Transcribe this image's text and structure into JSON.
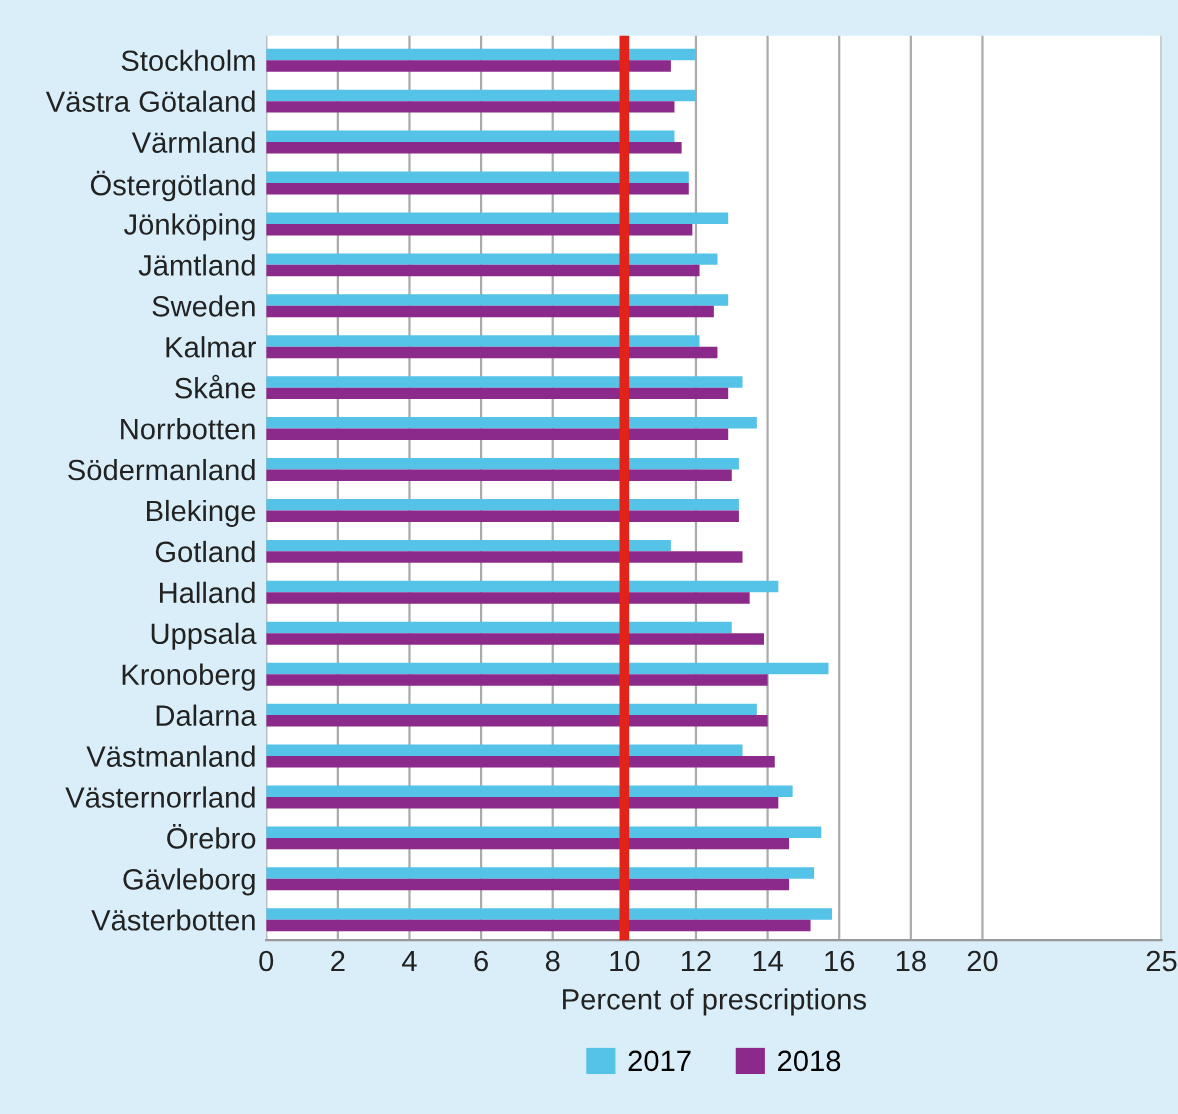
{
  "chart_data": {
    "type": "bar",
    "orientation": "horizontal",
    "xlabel": "Percent of prescriptions",
    "categories": [
      "Stockholm",
      "Västra Götaland",
      "Värmland",
      "Östergötland",
      "Jönköping",
      "Jämtland",
      "Sweden",
      "Kalmar",
      "Skåne",
      "Norrbotten",
      "Södermanland",
      "Blekinge",
      "Gotland",
      "Halland",
      "Uppsala",
      "Kronoberg",
      "Dalarna",
      "Västmanland",
      "Västernorrland",
      "Örebro",
      "Gävleborg",
      "Västerbotten"
    ],
    "series": [
      {
        "name": "2017",
        "color": "#55c3e8",
        "values": [
          12.0,
          12.0,
          11.4,
          11.8,
          12.9,
          12.6,
          12.9,
          12.1,
          13.3,
          13.7,
          13.2,
          13.2,
          11.3,
          14.3,
          13.0,
          15.7,
          13.7,
          13.3,
          14.7,
          15.5,
          15.3,
          15.8
        ]
      },
      {
        "name": "2018",
        "color": "#8b2a8a",
        "values": [
          11.3,
          11.4,
          11.6,
          11.8,
          11.9,
          12.1,
          12.5,
          12.6,
          12.9,
          12.9,
          13.0,
          13.2,
          13.3,
          13.5,
          13.9,
          14.0,
          14.0,
          14.2,
          14.3,
          14.6,
          14.6,
          15.2
        ]
      }
    ],
    "xlim": [
      0,
      25
    ],
    "xticks": [
      0,
      2,
      4,
      6,
      8,
      10,
      12,
      14,
      16,
      18,
      20,
      25
    ],
    "ref_lines": [
      {
        "axis": "x",
        "value": 10,
        "color": "#e2231a"
      }
    ],
    "grid": "x",
    "legend": "bottom"
  }
}
